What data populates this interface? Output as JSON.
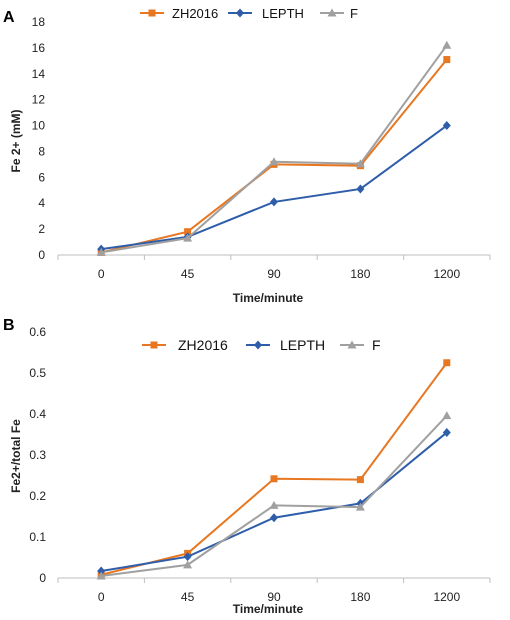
{
  "chart_data": [
    {
      "panel": "A",
      "type": "line",
      "categories": [
        "0",
        "45",
        "90",
        "180",
        "1200"
      ],
      "ylabel": "Fe 2+ (mM)",
      "xlabel": "Time/minute",
      "ylim": [
        0,
        18
      ],
      "yticks": [
        "0",
        "2",
        "4",
        "6",
        "8",
        "10",
        "12",
        "14",
        "16",
        "18"
      ],
      "grid": false,
      "legend_position": "top",
      "series": [
        {
          "name": "ZH2016",
          "color": "#E87722",
          "marker": "square",
          "values": [
            0.2,
            1.8,
            7.0,
            6.9,
            15.1
          ]
        },
        {
          "name": "LEPTH",
          "color": "#2E5DAA",
          "marker": "diamond",
          "values": [
            0.45,
            1.4,
            4.1,
            5.1,
            10.0
          ]
        },
        {
          "name": "F",
          "color": "#A0A0A0",
          "marker": "triangle",
          "values": [
            0.2,
            1.3,
            7.2,
            7.05,
            16.2
          ]
        }
      ]
    },
    {
      "panel": "B",
      "type": "line",
      "categories": [
        "0",
        "45",
        "90",
        "180",
        "1200"
      ],
      "ylabel": "Fe2+/total Fe",
      "xlabel": "Time/minute",
      "ylim": [
        0,
        0.6
      ],
      "yticks": [
        "0",
        "0.1",
        "0.2",
        "0.3",
        "0.4",
        "0.5",
        "0.6"
      ],
      "grid": false,
      "legend_position": "top",
      "series": [
        {
          "name": "ZH2016",
          "color": "#E87722",
          "marker": "square",
          "values": [
            0.008,
            0.06,
            0.242,
            0.24,
            0.525
          ]
        },
        {
          "name": "LEPTH",
          "color": "#2E5DAA",
          "marker": "diamond",
          "values": [
            0.017,
            0.052,
            0.147,
            0.182,
            0.355
          ]
        },
        {
          "name": "F",
          "color": "#A0A0A0",
          "marker": "triangle",
          "values": [
            0.005,
            0.032,
            0.177,
            0.173,
            0.396
          ]
        }
      ]
    }
  ]
}
